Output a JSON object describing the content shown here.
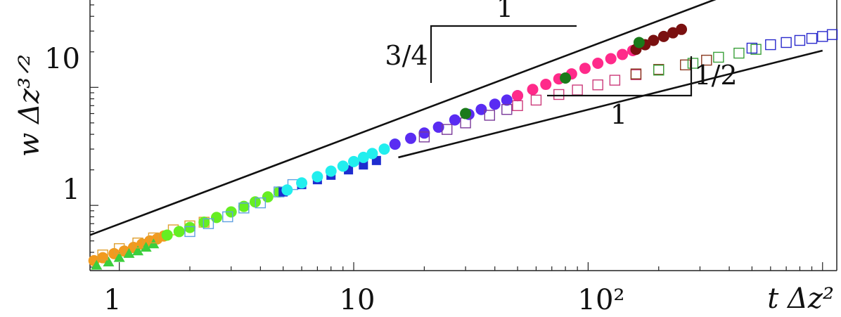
{
  "chart_data": {
    "type": "scatter",
    "x_scale": "log",
    "y_scale": "log",
    "xlim": [
      0.75,
      1150
    ],
    "ylim": [
      0.28,
      55
    ],
    "xlabel": "t Δz²",
    "ylabel": "w Δz³ᐟ²",
    "xtick_labels": [
      {
        "value": 1,
        "label": "1"
      },
      {
        "value": 10,
        "label": "10"
      },
      {
        "value": 100,
        "label": "10²"
      }
    ],
    "ytick_labels": [
      {
        "value": 1,
        "label": "1"
      },
      {
        "value": 10,
        "label": "10"
      }
    ],
    "reference_lines": [
      {
        "slope": 0.75,
        "x": [
          0.75,
          1150
        ],
        "y": [
          0.56,
          136
        ]
      },
      {
        "slope": 0.5,
        "x": [
          15.5,
          1000
        ],
        "y": [
          2.55,
          20.5
        ]
      }
    ],
    "annotations": [
      {
        "text": "1",
        "near": "upper slope triangle, top"
      },
      {
        "text": "3/4",
        "near": "upper slope triangle, left"
      },
      {
        "text": "1/2",
        "near": "lower slope triangle, right"
      },
      {
        "text": "1",
        "near": "lower slope triangle, bottom"
      }
    ],
    "series": [
      {
        "marker": "circle-filled",
        "color": "#f29a1e",
        "x": [
          0.78,
          0.85,
          0.95,
          1.05,
          1.15,
          1.25,
          1.35,
          1.45,
          1.55
        ],
        "y": [
          0.34,
          0.36,
          0.39,
          0.41,
          0.44,
          0.47,
          0.5,
          0.52,
          0.55
        ]
      },
      {
        "marker": "triangle-filled",
        "color": "#3ccf3c",
        "x": [
          0.8,
          0.9,
          1.0,
          1.1,
          1.2,
          1.3,
          1.4
        ],
        "y": [
          0.31,
          0.33,
          0.36,
          0.39,
          0.41,
          0.44,
          0.47
        ]
      },
      {
        "marker": "square-open",
        "color": "#e0a030",
        "x": [
          0.85,
          1.0,
          1.2,
          1.4,
          1.7,
          2.0,
          2.3
        ],
        "y": [
          0.38,
          0.43,
          0.48,
          0.53,
          0.62,
          0.67,
          0.72
        ]
      },
      {
        "marker": "circle-filled",
        "color": "#66ee22",
        "x": [
          1.6,
          1.8,
          2.0,
          2.3,
          2.6,
          3.0,
          3.4,
          3.8,
          4.3,
          4.8
        ],
        "y": [
          0.56,
          0.6,
          0.65,
          0.72,
          0.79,
          0.88,
          0.98,
          1.07,
          1.18,
          1.3
        ]
      },
      {
        "marker": "square-open",
        "color": "#60a0e0",
        "x": [
          2.0,
          2.4,
          2.9,
          3.4,
          4.0,
          4.8,
          5.5
        ],
        "y": [
          0.6,
          0.7,
          0.8,
          0.95,
          1.05,
          1.3,
          1.5
        ]
      },
      {
        "marker": "square-filled",
        "color": "#1e2ccf",
        "x": [
          5.0,
          6.0,
          7.0,
          8.0,
          9.5,
          11.0,
          12.5
        ],
        "y": [
          1.3,
          1.5,
          1.65,
          1.8,
          2.0,
          2.2,
          2.4
        ]
      },
      {
        "marker": "circle-filled",
        "color": "#22eeee",
        "x": [
          5.2,
          6.0,
          7.0,
          8.0,
          9.0,
          10.0,
          11.0,
          12.0,
          13.5,
          15.0
        ],
        "y": [
          1.35,
          1.55,
          1.75,
          1.95,
          2.15,
          2.35,
          2.55,
          2.75,
          3.0,
          3.3
        ]
      },
      {
        "marker": "circle-filled",
        "color": "#5a2cf2",
        "x": [
          15.0,
          17.5,
          20.0,
          23.0,
          27.0,
          31.0,
          35.0,
          40.0,
          45.0,
          50.0
        ],
        "y": [
          3.3,
          3.7,
          4.1,
          4.6,
          5.3,
          5.9,
          6.5,
          7.2,
          7.8,
          8.5
        ]
      },
      {
        "marker": "square-open",
        "color": "#7a3a9a",
        "x": [
          20.0,
          25.0,
          30.0,
          38.0,
          45.0
        ],
        "y": [
          3.8,
          4.4,
          5.0,
          5.8,
          6.5
        ]
      },
      {
        "marker": "circle-filled",
        "color": "#ff2a8a",
        "x": [
          50.0,
          58.0,
          66.0,
          75.0,
          85.0,
          97.0,
          110.0,
          125.0,
          140.0,
          155.0
        ],
        "y": [
          8.5,
          9.6,
          10.6,
          11.8,
          13.0,
          14.5,
          16.0,
          17.5,
          19.0,
          20.5
        ]
      },
      {
        "marker": "square-open",
        "color": "#cc3a7a",
        "x": [
          50.0,
          60.0,
          75.0,
          90.0,
          110.0,
          130.0,
          160.0
        ],
        "y": [
          7.0,
          7.8,
          8.7,
          9.5,
          10.5,
          11.5,
          12.8
        ]
      },
      {
        "marker": "circle-filled",
        "color": "#7a1010",
        "x": [
          160.0,
          175.0,
          190.0,
          210.0,
          230.0,
          250.0
        ],
        "y": [
          21.0,
          23.0,
          25.0,
          27.0,
          29.0,
          31.0
        ]
      },
      {
        "marker": "circle-filled",
        "color": "#1a7a1a",
        "x": [
          30.0,
          80.0,
          165.0
        ],
        "y": [
          6.0,
          12.0,
          24.0
        ]
      },
      {
        "marker": "square-open",
        "color": "#8a3a20",
        "x": [
          160.0,
          200.0,
          260.0,
          320.0
        ],
        "y": [
          13.0,
          14.2,
          15.5,
          17.0
        ]
      },
      {
        "marker": "square-open",
        "color": "#3aa03a",
        "x": [
          200.0,
          280.0,
          360.0,
          440.0,
          520.0
        ],
        "y": [
          14.0,
          16.0,
          18.0,
          19.5,
          21.0
        ]
      },
      {
        "marker": "square-open",
        "color": "#2a2acc",
        "x": [
          500.0,
          600.0,
          700.0,
          800.0,
          900.0,
          1000.0,
          1100.0
        ],
        "y": [
          21.5,
          23.0,
          24.0,
          25.0,
          26.0,
          27.0,
          28.0
        ]
      }
    ]
  }
}
